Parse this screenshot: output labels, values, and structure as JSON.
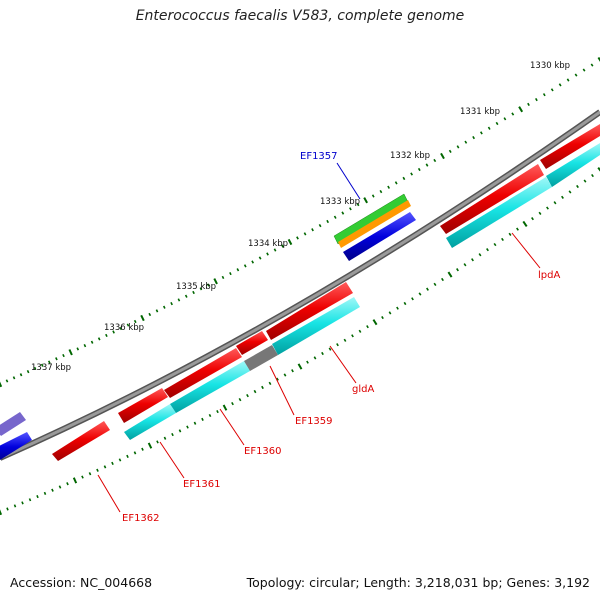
{
  "header": {
    "title": "Enterococcus faecalis V583, complete genome"
  },
  "footer": {
    "accession": "Accession: NC_004668",
    "summary": "Topology: circular; Length: 3,218,031 bp; Genes: 3,192"
  },
  "colors": {
    "forward_cds": "#ee0000",
    "reverse_cds": "#0000dd",
    "forward_gene": "#00e0e0",
    "backbone": "#8a8a8a",
    "ticks": "#006600",
    "feature_label_red": "#dd0000",
    "feature_label_blue": "#0000cc",
    "overlay_green": "#33cc33",
    "overlay_orange": "#ff9900",
    "rna_gray": "#777777",
    "reverse_faded": "#7766cc"
  },
  "scale": {
    "unit": "kbp",
    "labels": [
      "1330 kbp",
      "1331 kbp",
      "1332 kbp",
      "1333 kbp",
      "1334 kbp",
      "1335 kbp",
      "1336 kbp",
      "1337 kbp"
    ]
  },
  "features": [
    {
      "name": "EF1357",
      "color_key": "feature_label_blue"
    },
    {
      "name": "lpdA",
      "color_key": "feature_label_red"
    },
    {
      "name": "gldA",
      "color_key": "feature_label_red"
    },
    {
      "name": "EF1359",
      "color_key": "feature_label_red"
    },
    {
      "name": "EF1360",
      "color_key": "feature_label_red"
    },
    {
      "name": "EF1361",
      "color_key": "feature_label_red"
    },
    {
      "name": "EF1362",
      "color_key": "feature_label_red"
    }
  ]
}
